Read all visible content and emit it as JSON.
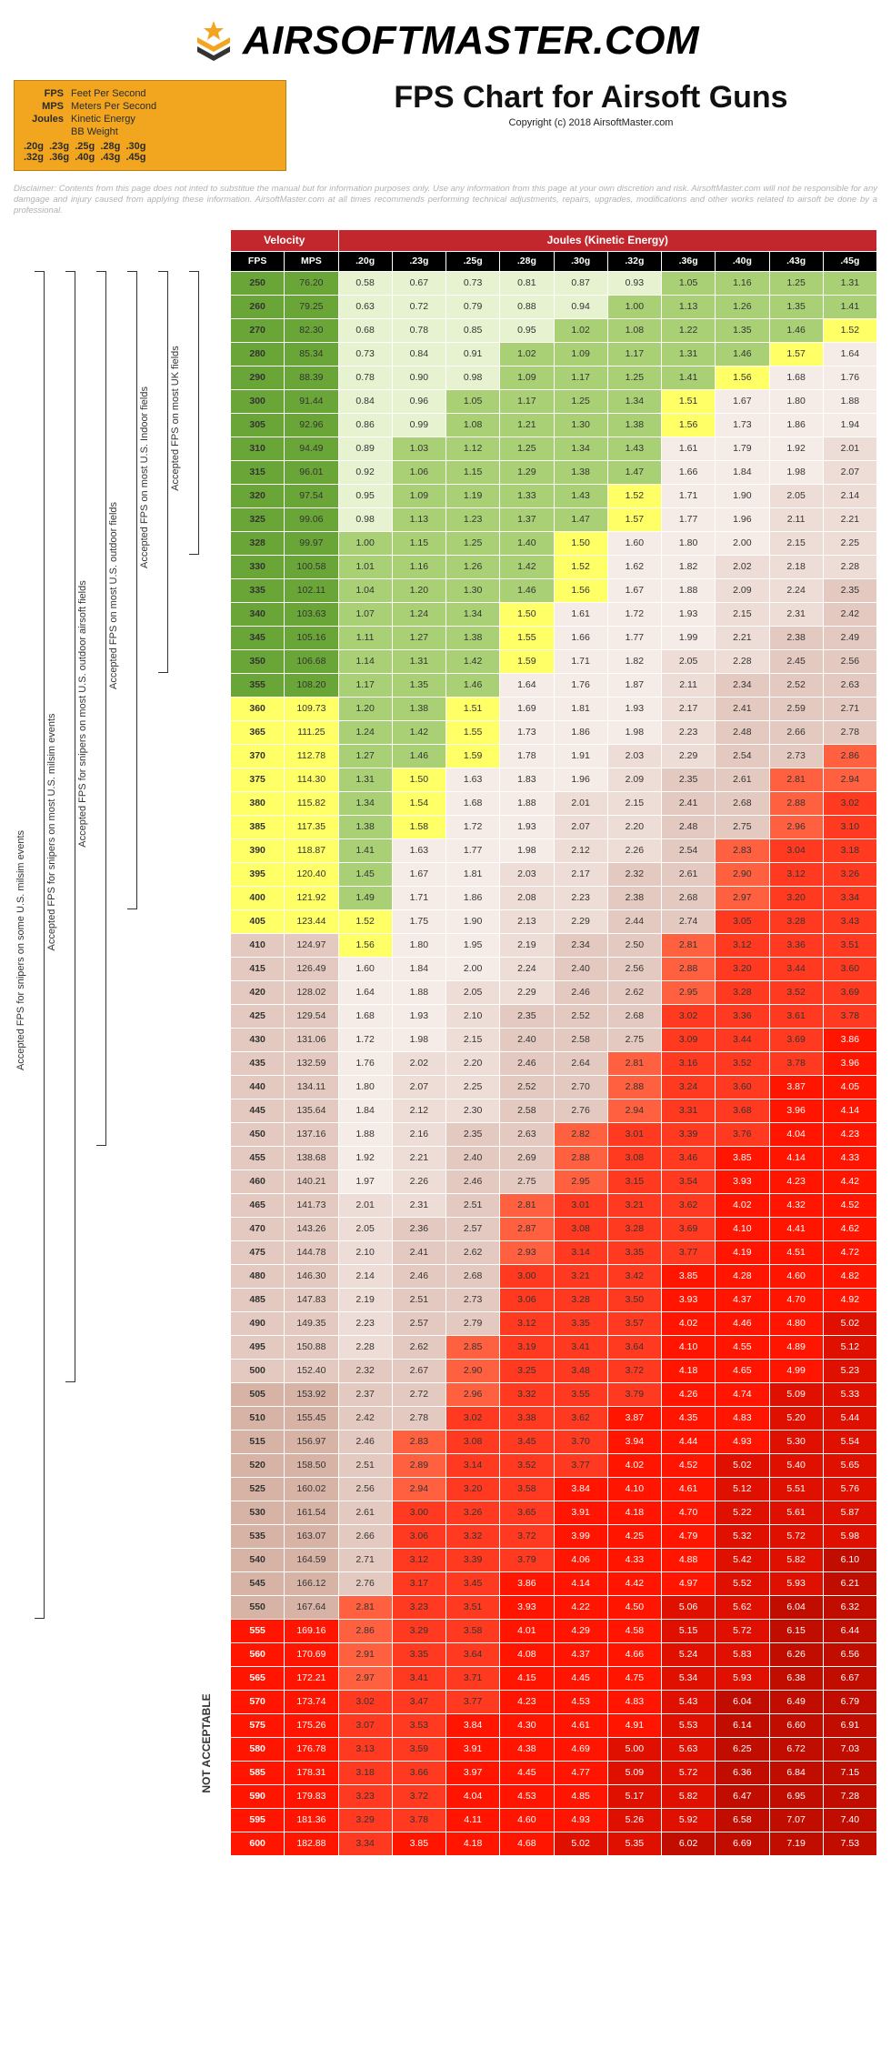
{
  "brand": "AIRSOFTMASTER.COM",
  "legend": {
    "rows": [
      {
        "k": "FPS",
        "v": "Feet Per Second"
      },
      {
        "k": "MPS",
        "v": "Meters Per Second"
      },
      {
        "k": "Joules",
        "v": "Kinetic Energy"
      },
      {
        "k": "",
        "v": "BB Weight"
      }
    ],
    "weights_line": ".20g  .23g  .25g  .28g  .30g\n.32g  .36g  .40g  .43g  .45g"
  },
  "title": "FPS Chart for Airsoft Guns",
  "copyright": "Copyright (c) 2018 AirsoftMaster.com",
  "disclaimer": "Disclaimer: Contents from this page does not inted to substitue the manual but for information purposes only. Use any information from this page at your own discretion and risk. AirsoftMaster.com will not be responsible for any damgage and injury caused from applying these information. AirsoftMaster.com at all times recommends performing technical adjustments, repairs, upgrades, modifications and other works related to airsoft be done by a professional.",
  "columns": {
    "group_velocity": "Velocity",
    "group_joules": "Joules (Kinetic Energy)",
    "fps": "FPS",
    "mps": "MPS",
    "weights": [
      ".20g",
      ".23g",
      ".25g",
      ".28g",
      ".30g",
      ".32g",
      ".36g",
      ".40g",
      ".43g",
      ".45g"
    ]
  },
  "brackets": [
    {
      "label": "Accepted FPS for snipers on some U.S. milsim events",
      "from": 250,
      "to": 550
    },
    {
      "label": "Accepted FPS for snipers on most U.S. milsim events",
      "from": 250,
      "to": 500
    },
    {
      "label": "Accepted FPS for snipers on most U.S. outdoor airsoft fields",
      "from": 250,
      "to": 450
    },
    {
      "label": "Accepted FPS on most U.S. outdoor fields",
      "from": 250,
      "to": 400
    },
    {
      "label": "Accepted FPS on most U.S. Indoor fields",
      "from": 250,
      "to": 350
    },
    {
      "label": "Accepted FPS on most UK fields",
      "from": 250,
      "to": 328
    }
  ],
  "not_acceptable_label": "NOT ACCEPTABLE",
  "not_acceptable_from": 555,
  "colors": {
    "palette": {
      "g5": "#6aa637",
      "g4": "#8abb4e",
      "g3": "#aad075",
      "g2": "#c8e29f",
      "g1": "#e6f2d0",
      "y": "#ffff66",
      "p1": "#f5ebe7",
      "p2": "#eeddd6",
      "p3": "#e3c9bf",
      "p4": "#d7b3a6",
      "p5": "#c99b8c",
      "r1": "#ff6040",
      "r2": "#ff3a20",
      "r3": "#ff1500",
      "r4": "#e01000",
      "r5": "#c00d00"
    },
    "fps_col": "g5",
    "ranges": [
      {
        "min": 0,
        "max": 0.99,
        "key": "g1"
      },
      {
        "min": 1.0,
        "max": 1.49,
        "key": "g3"
      },
      {
        "min": 1.5,
        "max": 1.59,
        "key": "y"
      },
      {
        "min": 1.6,
        "max": 2.0,
        "key": "p1"
      },
      {
        "min": 2.01,
        "max": 2.31,
        "key": "p2"
      },
      {
        "min": 2.32,
        "max": 2.8,
        "key": "p3"
      },
      {
        "min": 2.81,
        "max": 2.99,
        "key": "r1"
      },
      {
        "min": 3.0,
        "max": 3.79,
        "key": "r2"
      },
      {
        "min": 3.8,
        "max": 4.99,
        "key": "r3"
      },
      {
        "min": 5.0,
        "max": 5.99,
        "key": "r4"
      },
      {
        "min": 6.0,
        "max": 99,
        "key": "r5"
      }
    ]
  },
  "rows": [
    {
      "fps": 250,
      "mps": "76.20",
      "j": [
        0.58,
        0.67,
        0.73,
        0.81,
        0.87,
        0.93,
        1.05,
        1.16,
        1.25,
        1.31
      ]
    },
    {
      "fps": 260,
      "mps": "79.25",
      "j": [
        0.63,
        0.72,
        0.79,
        0.88,
        0.94,
        1.0,
        1.13,
        1.26,
        1.35,
        1.41
      ]
    },
    {
      "fps": 270,
      "mps": "82.30",
      "j": [
        0.68,
        0.78,
        0.85,
        0.95,
        1.02,
        1.08,
        1.22,
        1.35,
        1.46,
        1.52
      ]
    },
    {
      "fps": 280,
      "mps": "85.34",
      "j": [
        0.73,
        0.84,
        0.91,
        1.02,
        1.09,
        1.17,
        1.31,
        1.46,
        1.57,
        1.64
      ]
    },
    {
      "fps": 290,
      "mps": "88.39",
      "j": [
        0.78,
        0.9,
        0.98,
        1.09,
        1.17,
        1.25,
        1.41,
        1.56,
        1.68,
        1.76
      ]
    },
    {
      "fps": 300,
      "mps": "91.44",
      "j": [
        0.84,
        0.96,
        1.05,
        1.17,
        1.25,
        1.34,
        1.51,
        1.67,
        1.8,
        1.88
      ]
    },
    {
      "fps": 305,
      "mps": "92.96",
      "j": [
        0.86,
        0.99,
        1.08,
        1.21,
        1.3,
        1.38,
        1.56,
        1.73,
        1.86,
        1.94
      ]
    },
    {
      "fps": 310,
      "mps": "94.49",
      "j": [
        0.89,
        1.03,
        1.12,
        1.25,
        1.34,
        1.43,
        1.61,
        1.79,
        1.92,
        2.01
      ]
    },
    {
      "fps": 315,
      "mps": "96.01",
      "j": [
        0.92,
        1.06,
        1.15,
        1.29,
        1.38,
        1.47,
        1.66,
        1.84,
        1.98,
        2.07
      ]
    },
    {
      "fps": 320,
      "mps": "97.54",
      "j": [
        0.95,
        1.09,
        1.19,
        1.33,
        1.43,
        1.52,
        1.71,
        1.9,
        2.05,
        2.14
      ]
    },
    {
      "fps": 325,
      "mps": "99.06",
      "j": [
        0.98,
        1.13,
        1.23,
        1.37,
        1.47,
        1.57,
        1.77,
        1.96,
        2.11,
        2.21
      ]
    },
    {
      "fps": 328,
      "mps": "99.97",
      "j": [
        1.0,
        1.15,
        1.25,
        1.4,
        1.5,
        1.6,
        1.8,
        2.0,
        2.15,
        2.25
      ]
    },
    {
      "fps": 330,
      "mps": "100.58",
      "j": [
        1.01,
        1.16,
        1.26,
        1.42,
        1.52,
        1.62,
        1.82,
        2.02,
        2.18,
        2.28
      ]
    },
    {
      "fps": 335,
      "mps": "102.11",
      "j": [
        1.04,
        1.2,
        1.3,
        1.46,
        1.56,
        1.67,
        1.88,
        2.09,
        2.24,
        2.35
      ]
    },
    {
      "fps": 340,
      "mps": "103.63",
      "j": [
        1.07,
        1.24,
        1.34,
        1.5,
        1.61,
        1.72,
        1.93,
        2.15,
        2.31,
        2.42
      ]
    },
    {
      "fps": 345,
      "mps": "105.16",
      "j": [
        1.11,
        1.27,
        1.38,
        1.55,
        1.66,
        1.77,
        1.99,
        2.21,
        2.38,
        2.49
      ]
    },
    {
      "fps": 350,
      "mps": "106.68",
      "j": [
        1.14,
        1.31,
        1.42,
        1.59,
        1.71,
        1.82,
        2.05,
        2.28,
        2.45,
        2.56
      ]
    },
    {
      "fps": 355,
      "mps": "108.20",
      "j": [
        1.17,
        1.35,
        1.46,
        1.64,
        1.76,
        1.87,
        2.11,
        2.34,
        2.52,
        2.63
      ]
    },
    {
      "fps": 360,
      "mps": "109.73",
      "j": [
        1.2,
        1.38,
        1.51,
        1.69,
        1.81,
        1.93,
        2.17,
        2.41,
        2.59,
        2.71
      ]
    },
    {
      "fps": 365,
      "mps": "111.25",
      "j": [
        1.24,
        1.42,
        1.55,
        1.73,
        1.86,
        1.98,
        2.23,
        2.48,
        2.66,
        2.78
      ]
    },
    {
      "fps": 370,
      "mps": "112.78",
      "j": [
        1.27,
        1.46,
        1.59,
        1.78,
        1.91,
        2.03,
        2.29,
        2.54,
        2.73,
        2.86
      ]
    },
    {
      "fps": 375,
      "mps": "114.30",
      "j": [
        1.31,
        1.5,
        1.63,
        1.83,
        1.96,
        2.09,
        2.35,
        2.61,
        2.81,
        2.94
      ]
    },
    {
      "fps": 380,
      "mps": "115.82",
      "j": [
        1.34,
        1.54,
        1.68,
        1.88,
        2.01,
        2.15,
        2.41,
        2.68,
        2.88,
        3.02
      ]
    },
    {
      "fps": 385,
      "mps": "117.35",
      "j": [
        1.38,
        1.58,
        1.72,
        1.93,
        2.07,
        2.2,
        2.48,
        2.75,
        2.96,
        3.1
      ]
    },
    {
      "fps": 390,
      "mps": "118.87",
      "j": [
        1.41,
        1.63,
        1.77,
        1.98,
        2.12,
        2.26,
        2.54,
        2.83,
        3.04,
        3.18
      ]
    },
    {
      "fps": 395,
      "mps": "120.40",
      "j": [
        1.45,
        1.67,
        1.81,
        2.03,
        2.17,
        2.32,
        2.61,
        2.9,
        3.12,
        3.26
      ]
    },
    {
      "fps": 400,
      "mps": "121.92",
      "j": [
        1.49,
        1.71,
        1.86,
        2.08,
        2.23,
        2.38,
        2.68,
        2.97,
        3.2,
        3.34
      ]
    },
    {
      "fps": 405,
      "mps": "123.44",
      "j": [
        1.52,
        1.75,
        1.9,
        2.13,
        2.29,
        2.44,
        2.74,
        3.05,
        3.28,
        3.43
      ]
    },
    {
      "fps": 410,
      "mps": "124.97",
      "j": [
        1.56,
        1.8,
        1.95,
        2.19,
        2.34,
        2.5,
        2.81,
        3.12,
        3.36,
        3.51
      ]
    },
    {
      "fps": 415,
      "mps": "126.49",
      "j": [
        1.6,
        1.84,
        2.0,
        2.24,
        2.4,
        2.56,
        2.88,
        3.2,
        3.44,
        3.6
      ]
    },
    {
      "fps": 420,
      "mps": "128.02",
      "j": [
        1.64,
        1.88,
        2.05,
        2.29,
        2.46,
        2.62,
        2.95,
        3.28,
        3.52,
        3.69
      ]
    },
    {
      "fps": 425,
      "mps": "129.54",
      "j": [
        1.68,
        1.93,
        2.1,
        2.35,
        2.52,
        2.68,
        3.02,
        3.36,
        3.61,
        3.78
      ]
    },
    {
      "fps": 430,
      "mps": "131.06",
      "j": [
        1.72,
        1.98,
        2.15,
        2.4,
        2.58,
        2.75,
        3.09,
        3.44,
        3.69,
        3.86
      ]
    },
    {
      "fps": 435,
      "mps": "132.59",
      "j": [
        1.76,
        2.02,
        2.2,
        2.46,
        2.64,
        2.81,
        3.16,
        3.52,
        3.78,
        3.96
      ]
    },
    {
      "fps": 440,
      "mps": "134.11",
      "j": [
        1.8,
        2.07,
        2.25,
        2.52,
        2.7,
        2.88,
        3.24,
        3.6,
        3.87,
        4.05
      ]
    },
    {
      "fps": 445,
      "mps": "135.64",
      "j": [
        1.84,
        2.12,
        2.3,
        2.58,
        2.76,
        2.94,
        3.31,
        3.68,
        3.96,
        4.14
      ]
    },
    {
      "fps": 450,
      "mps": "137.16",
      "j": [
        1.88,
        2.16,
        2.35,
        2.63,
        2.82,
        3.01,
        3.39,
        3.76,
        4.04,
        4.23
      ]
    },
    {
      "fps": 455,
      "mps": "138.68",
      "j": [
        1.92,
        2.21,
        2.4,
        2.69,
        2.88,
        3.08,
        3.46,
        3.85,
        4.14,
        4.33
      ]
    },
    {
      "fps": 460,
      "mps": "140.21",
      "j": [
        1.97,
        2.26,
        2.46,
        2.75,
        2.95,
        3.15,
        3.54,
        3.93,
        4.23,
        4.42
      ]
    },
    {
      "fps": 465,
      "mps": "141.73",
      "j": [
        2.01,
        2.31,
        2.51,
        2.81,
        3.01,
        3.21,
        3.62,
        4.02,
        4.32,
        4.52
      ]
    },
    {
      "fps": 470,
      "mps": "143.26",
      "j": [
        2.05,
        2.36,
        2.57,
        2.87,
        3.08,
        3.28,
        3.69,
        4.1,
        4.41,
        4.62
      ]
    },
    {
      "fps": 475,
      "mps": "144.78",
      "j": [
        2.1,
        2.41,
        2.62,
        2.93,
        3.14,
        3.35,
        3.77,
        4.19,
        4.51,
        4.72
      ]
    },
    {
      "fps": 480,
      "mps": "146.30",
      "j": [
        2.14,
        2.46,
        2.68,
        3.0,
        3.21,
        3.42,
        3.85,
        4.28,
        4.6,
        4.82
      ]
    },
    {
      "fps": 485,
      "mps": "147.83",
      "j": [
        2.19,
        2.51,
        2.73,
        3.06,
        3.28,
        3.5,
        3.93,
        4.37,
        4.7,
        4.92
      ]
    },
    {
      "fps": 490,
      "mps": "149.35",
      "j": [
        2.23,
        2.57,
        2.79,
        3.12,
        3.35,
        3.57,
        4.02,
        4.46,
        4.8,
        5.02
      ]
    },
    {
      "fps": 495,
      "mps": "150.88",
      "j": [
        2.28,
        2.62,
        2.85,
        3.19,
        3.41,
        3.64,
        4.1,
        4.55,
        4.89,
        5.12
      ]
    },
    {
      "fps": 500,
      "mps": "152.40",
      "j": [
        2.32,
        2.67,
        2.9,
        3.25,
        3.48,
        3.72,
        4.18,
        4.65,
        4.99,
        5.23
      ]
    },
    {
      "fps": 505,
      "mps": "153.92",
      "j": [
        2.37,
        2.72,
        2.96,
        3.32,
        3.55,
        3.79,
        4.26,
        4.74,
        5.09,
        5.33
      ]
    },
    {
      "fps": 510,
      "mps": "155.45",
      "j": [
        2.42,
        2.78,
        3.02,
        3.38,
        3.62,
        3.87,
        4.35,
        4.83,
        5.2,
        5.44
      ]
    },
    {
      "fps": 515,
      "mps": "156.97",
      "j": [
        2.46,
        2.83,
        3.08,
        3.45,
        3.7,
        3.94,
        4.44,
        4.93,
        5.3,
        5.54
      ]
    },
    {
      "fps": 520,
      "mps": "158.50",
      "j": [
        2.51,
        2.89,
        3.14,
        3.52,
        3.77,
        4.02,
        4.52,
        5.02,
        5.4,
        5.65
      ]
    },
    {
      "fps": 525,
      "mps": "160.02",
      "j": [
        2.56,
        2.94,
        3.2,
        3.58,
        3.84,
        4.1,
        4.61,
        5.12,
        5.51,
        5.76
      ]
    },
    {
      "fps": 530,
      "mps": "161.54",
      "j": [
        2.61,
        3.0,
        3.26,
        3.65,
        3.91,
        4.18,
        4.7,
        5.22,
        5.61,
        5.87
      ]
    },
    {
      "fps": 535,
      "mps": "163.07",
      "j": [
        2.66,
        3.06,
        3.32,
        3.72,
        3.99,
        4.25,
        4.79,
        5.32,
        5.72,
        5.98
      ]
    },
    {
      "fps": 540,
      "mps": "164.59",
      "j": [
        2.71,
        3.12,
        3.39,
        3.79,
        4.06,
        4.33,
        4.88,
        5.42,
        5.82,
        6.1
      ]
    },
    {
      "fps": 545,
      "mps": "166.12",
      "j": [
        2.76,
        3.17,
        3.45,
        3.86,
        4.14,
        4.42,
        4.97,
        5.52,
        5.93,
        6.21
      ]
    },
    {
      "fps": 550,
      "mps": "167.64",
      "j": [
        2.81,
        3.23,
        3.51,
        3.93,
        4.22,
        4.5,
        5.06,
        5.62,
        6.04,
        6.32
      ]
    },
    {
      "fps": 555,
      "mps": "169.16",
      "j": [
        2.86,
        3.29,
        3.58,
        4.01,
        4.29,
        4.58,
        5.15,
        5.72,
        6.15,
        6.44
      ]
    },
    {
      "fps": 560,
      "mps": "170.69",
      "j": [
        2.91,
        3.35,
        3.64,
        4.08,
        4.37,
        4.66,
        5.24,
        5.83,
        6.26,
        6.56
      ]
    },
    {
      "fps": 565,
      "mps": "172.21",
      "j": [
        2.97,
        3.41,
        3.71,
        4.15,
        4.45,
        4.75,
        5.34,
        5.93,
        6.38,
        6.67
      ]
    },
    {
      "fps": 570,
      "mps": "173.74",
      "j": [
        3.02,
        3.47,
        3.77,
        4.23,
        4.53,
        4.83,
        5.43,
        6.04,
        6.49,
        6.79
      ]
    },
    {
      "fps": 575,
      "mps": "175.26",
      "j": [
        3.07,
        3.53,
        3.84,
        4.3,
        4.61,
        4.91,
        5.53,
        6.14,
        6.6,
        6.91
      ]
    },
    {
      "fps": 580,
      "mps": "176.78",
      "j": [
        3.13,
        3.59,
        3.91,
        4.38,
        4.69,
        5.0,
        5.63,
        6.25,
        6.72,
        7.03
      ]
    },
    {
      "fps": 585,
      "mps": "178.31",
      "j": [
        3.18,
        3.66,
        3.97,
        4.45,
        4.77,
        5.09,
        5.72,
        6.36,
        6.84,
        7.15
      ]
    },
    {
      "fps": 590,
      "mps": "179.83",
      "j": [
        3.23,
        3.72,
        4.04,
        4.53,
        4.85,
        5.17,
        5.82,
        6.47,
        6.95,
        7.28
      ]
    },
    {
      "fps": 595,
      "mps": "181.36",
      "j": [
        3.29,
        3.78,
        4.11,
        4.6,
        4.93,
        5.26,
        5.92,
        6.58,
        7.07,
        7.4
      ]
    },
    {
      "fps": 600,
      "mps": "182.88",
      "j": [
        3.34,
        3.85,
        4.18,
        4.68,
        5.02,
        5.35,
        6.02,
        6.69,
        7.19,
        7.53
      ]
    }
  ]
}
